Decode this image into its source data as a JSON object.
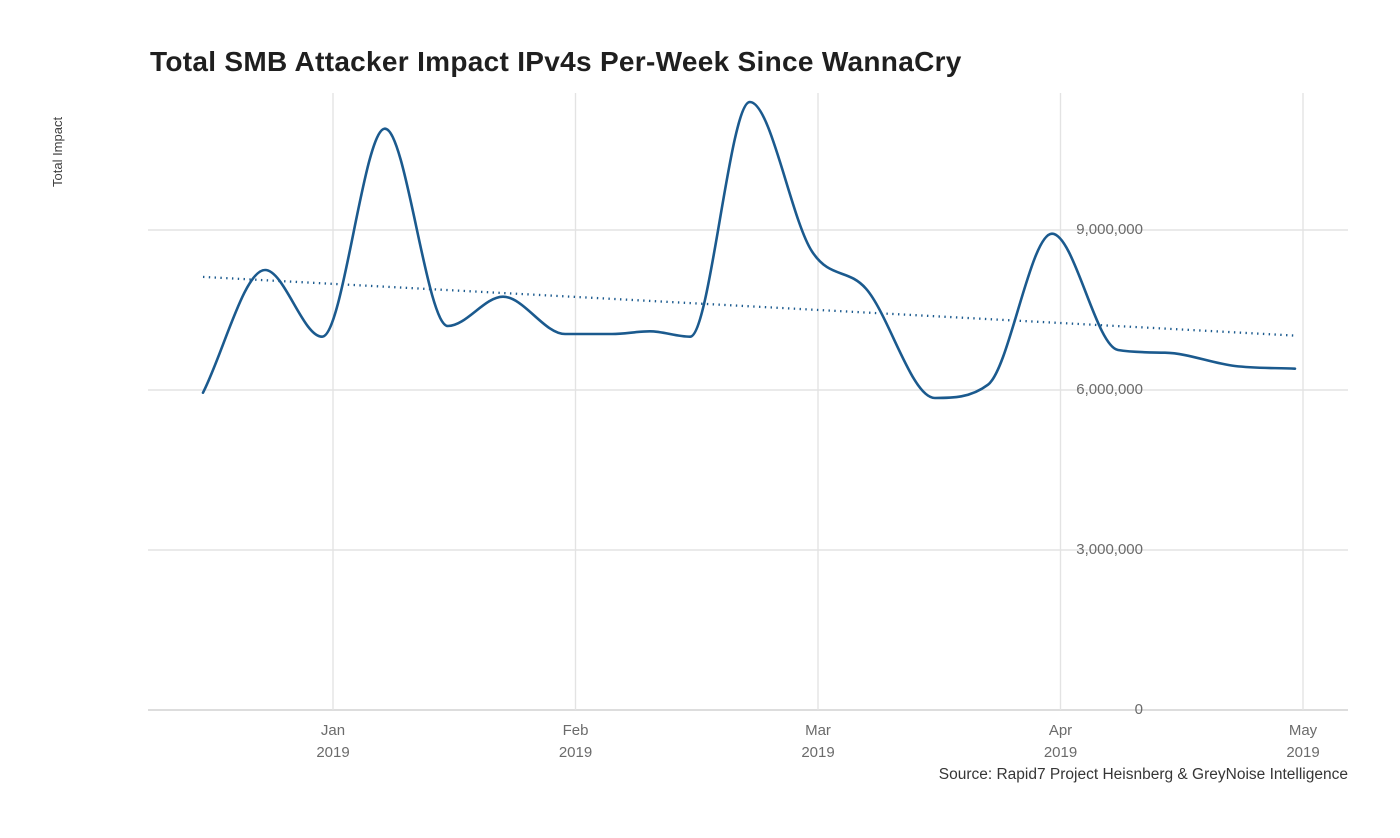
{
  "chart_data": {
    "type": "line",
    "title": "Total SMB Attacker Impact IPv4s Per-Week Since WannaCry",
    "xlabel": "",
    "ylabel": "Total Impact",
    "source": "Source: Rapid7 Project Heisnberg & GreyNoise Intelligence",
    "grid": true,
    "legend": "none",
    "ylim": [
      0,
      11600000
    ],
    "yticks": [
      {
        "value": 0,
        "label": "0"
      },
      {
        "value": 3000000,
        "label": "3,000,000"
      },
      {
        "value": 6000000,
        "label": "6,000,000"
      },
      {
        "value": 9000000,
        "label": "9,000,000"
      }
    ],
    "xticks": [
      {
        "pos": 0,
        "month": "Jan",
        "year": "2019"
      },
      {
        "pos": 1,
        "month": "Feb",
        "year": "2019"
      },
      {
        "pos": 2,
        "month": "Mar",
        "year": "2019"
      },
      {
        "pos": 3,
        "month": "Apr",
        "year": "2019"
      },
      {
        "pos": 4,
        "month": "May",
        "year": "2019"
      }
    ],
    "x_unit": "months_after_jan_2019_tick",
    "series": [
      {
        "name": "weekly-total-impact",
        "style": "solid",
        "points": [
          [
            -0.536,
            5950000
          ],
          [
            -0.28,
            8250000
          ],
          [
            -0.045,
            7000000
          ],
          [
            0.214,
            10900000
          ],
          [
            0.474,
            7200000
          ],
          [
            0.701,
            7750000
          ],
          [
            0.957,
            7050000
          ],
          [
            1.151,
            7050000
          ],
          [
            1.307,
            7100000
          ],
          [
            1.472,
            7000000
          ],
          [
            1.719,
            11400000
          ],
          [
            1.975,
            8600000
          ],
          [
            2.198,
            7900000
          ],
          [
            2.482,
            5850000
          ],
          [
            2.701,
            6100000
          ],
          [
            2.965,
            8930000
          ],
          [
            3.237,
            6750000
          ],
          [
            3.431,
            6700000
          ],
          [
            3.719,
            6450000
          ],
          [
            3.967,
            6400000
          ]
        ]
      },
      {
        "name": "trend",
        "style": "dotted",
        "points": [
          [
            -0.536,
            8120000
          ],
          [
            3.967,
            7020000
          ]
        ]
      }
    ],
    "colors": {
      "line": "#1B5A8E",
      "trend": "#1B5A8E",
      "grid": "#e3e3e3",
      "grid_zero": "#d2d2d2",
      "background": "#ffffff"
    }
  }
}
